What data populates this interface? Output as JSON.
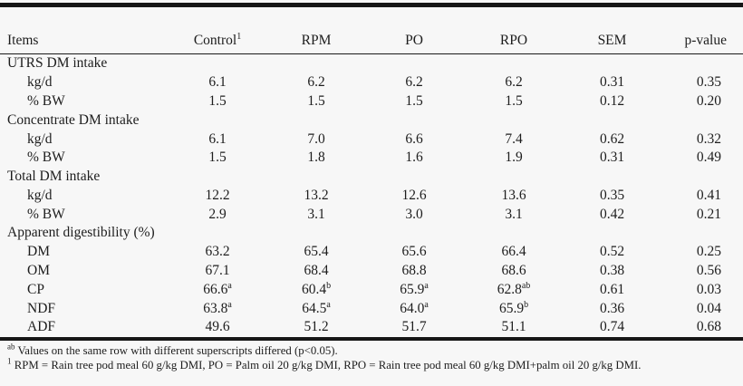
{
  "table": {
    "columns": [
      {
        "label": "Items",
        "sup": "",
        "key": "items"
      },
      {
        "label": "Control",
        "sup": "1",
        "key": "control"
      },
      {
        "label": "RPM",
        "sup": "",
        "key": "rpm"
      },
      {
        "label": "PO",
        "sup": "",
        "key": "po"
      },
      {
        "label": "RPO",
        "sup": "",
        "key": "rpo"
      },
      {
        "label": "SEM",
        "sup": "",
        "key": "sem"
      },
      {
        "label": "p-value",
        "sup": "",
        "key": "pval"
      }
    ],
    "rows": [
      {
        "type": "section",
        "label": "UTRS DM intake"
      },
      {
        "type": "data",
        "label": "kg/d",
        "indent": true,
        "values": [
          "6.1",
          "6.2",
          "6.2",
          "6.2",
          "0.31",
          "0.35"
        ]
      },
      {
        "type": "data",
        "label": "% BW",
        "indent": true,
        "values": [
          "1.5",
          "1.5",
          "1.5",
          "1.5",
          "0.12",
          "0.20"
        ]
      },
      {
        "type": "section",
        "label": "Concentrate DM intake"
      },
      {
        "type": "data",
        "label": "kg/d",
        "indent": true,
        "values": [
          "6.1",
          "7.0",
          "6.6",
          "7.4",
          "0.62",
          "0.32"
        ]
      },
      {
        "type": "data",
        "label": "% BW",
        "indent": true,
        "values": [
          "1.5",
          "1.8",
          "1.6",
          "1.9",
          "0.31",
          "0.49"
        ]
      },
      {
        "type": "section",
        "label": "Total DM intake"
      },
      {
        "type": "data",
        "label": "kg/d",
        "indent": true,
        "values": [
          "12.2",
          "13.2",
          "12.6",
          "13.6",
          "0.35",
          "0.41"
        ]
      },
      {
        "type": "data",
        "label": "% BW",
        "indent": true,
        "values": [
          "2.9",
          "3.1",
          "3.0",
          "3.1",
          "0.42",
          "0.21"
        ]
      },
      {
        "type": "section",
        "label": "Apparent digestibility (%)"
      },
      {
        "type": "data",
        "label": "DM",
        "indent": true,
        "values": [
          "63.2",
          "65.4",
          "65.6",
          "66.4",
          "0.52",
          "0.25"
        ]
      },
      {
        "type": "data",
        "label": "OM",
        "indent": true,
        "values": [
          "67.1",
          "68.4",
          "68.8",
          "68.6",
          "0.38",
          "0.56"
        ]
      },
      {
        "type": "data",
        "label": "CP",
        "indent": true,
        "values": [
          "66.6^a",
          "60.4^b",
          "65.9^a",
          "62.8^ab",
          "0.61",
          "0.03"
        ]
      },
      {
        "type": "data",
        "label": "NDF",
        "indent": true,
        "values": [
          "63.8^a",
          "64.5^a",
          "64.0^a",
          "65.9^b",
          "0.36",
          "0.04"
        ]
      },
      {
        "type": "data",
        "label": "ADF",
        "indent": true,
        "values": [
          "49.6",
          "51.2",
          "51.7",
          "51.1",
          "0.74",
          "0.68"
        ]
      }
    ]
  },
  "footnotes": [
    {
      "sup": "ab",
      "text": " Values on the same row with different superscripts differed (p<0.05)."
    },
    {
      "sup": "1",
      "text": " RPM = Rain tree pod meal 60 g/kg DMI, PO = Palm oil 20 g/kg DMI, RPO = Rain tree pod meal 60 g/kg DMI+palm oil 20 g/kg DMI."
    }
  ]
}
